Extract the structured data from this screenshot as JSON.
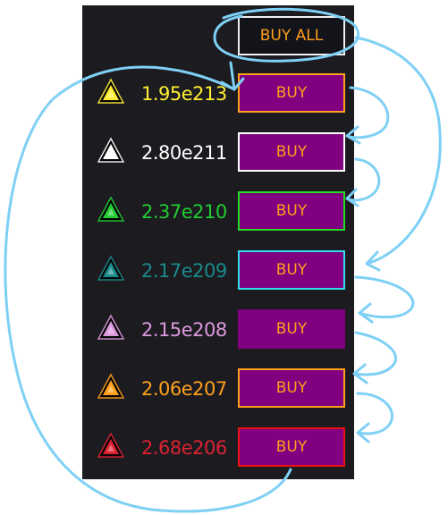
{
  "buy_all": {
    "label": "BUY ALL"
  },
  "rows": [
    {
      "amount": "1.95e213",
      "buy_label": "BUY",
      "color": "#ffee33",
      "border": "#ff9f1c",
      "icon": "yellow-triangle-icon"
    },
    {
      "amount": "2.80e211",
      "buy_label": "BUY",
      "color": "#ffffff",
      "border": "#ffffff",
      "icon": "white-triangle-icon"
    },
    {
      "amount": "2.37e210",
      "buy_label": "BUY",
      "color": "#22cc33",
      "border": "#22dd22",
      "icon": "green-triangle-icon"
    },
    {
      "amount": "2.17e209",
      "buy_label": "BUY",
      "color": "#1a8a8a",
      "border": "#33ddee",
      "icon": "blue-triangle-icon"
    },
    {
      "amount": "2.15e208",
      "buy_label": "BUY",
      "color": "#dd99dd",
      "border": "#800080",
      "icon": "purple-triangle-icon"
    },
    {
      "amount": "2.06e207",
      "buy_label": "BUY",
      "color": "#ff9f1c",
      "border": "#ff9f1c",
      "icon": "orange-triangle-icon"
    },
    {
      "amount": "2.68e206",
      "buy_label": "BUY",
      "color": "#dd2233",
      "border": "#ee1111",
      "icon": "red-triangle-icon"
    }
  ]
}
